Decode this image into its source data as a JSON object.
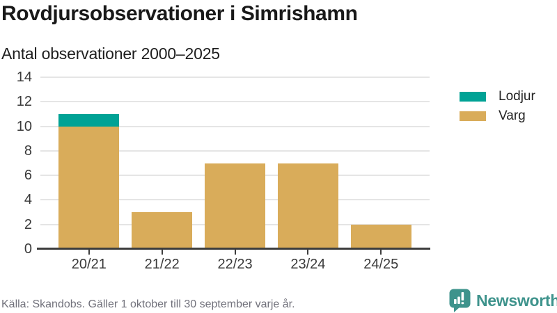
{
  "header": {
    "title": "Rovdjursobservationer i Simrishamn",
    "subtitle": "Antal observationer 2000–2025"
  },
  "chart_data": {
    "type": "bar",
    "stacked": true,
    "categories": [
      "20/21",
      "21/22",
      "22/23",
      "23/24",
      "24/25"
    ],
    "series": [
      {
        "name": "Lodjur",
        "color": "#00a295",
        "values": [
          1,
          0,
          0,
          0,
          0
        ]
      },
      {
        "name": "Varg",
        "color": "#d9ac5a",
        "values": [
          10,
          3,
          7,
          7,
          2
        ]
      }
    ],
    "title": "Rovdjursobservationer i Simrishamn",
    "subtitle": "Antal observationer 2000–2025",
    "xlabel": "",
    "ylabel": "",
    "ylim": [
      0,
      14
    ],
    "yticks": [
      0,
      2,
      4,
      6,
      8,
      10,
      12,
      14
    ],
    "grid": true,
    "legend_position": "right",
    "colors": {
      "grid": "#e5e5e5",
      "axis": "#3d3d3d",
      "tick_label": "#3a3a3a"
    }
  },
  "legend": {
    "items": [
      {
        "label": "Lodjur",
        "color": "#00a295"
      },
      {
        "label": "Varg",
        "color": "#d9ac5a"
      }
    ]
  },
  "footer": {
    "source": "Källa: Skandobs. Gäller 1 oktober till 30 september varje år.",
    "brand": "Newsworthy",
    "brand_color": "#3e938c"
  }
}
